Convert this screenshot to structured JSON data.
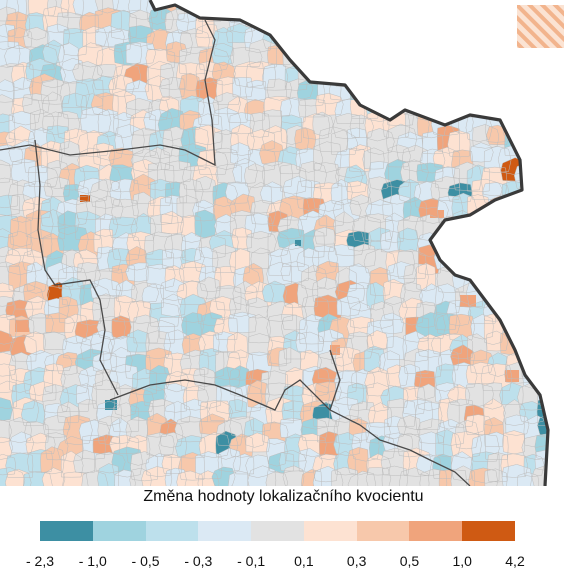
{
  "legend": {
    "title": "Změna hodnoty lokalizačního kvocientu",
    "bins": [
      {
        "color": "#3d8fa3"
      },
      {
        "color": "#9fd3df"
      },
      {
        "color": "#bde0ec"
      },
      {
        "color": "#dbe9f4"
      },
      {
        "color": "#e2e2e2"
      },
      {
        "color": "#fde2d2"
      },
      {
        "color": "#f7c8ab"
      },
      {
        "color": "#f0a47c"
      },
      {
        "color": "#cf5a13"
      }
    ],
    "ticks": [
      "- 2,3",
      "- 1,0",
      "- 0,5",
      "- 0,3",
      "- 0,1",
      "0,1",
      "0,3",
      "0,5",
      "1,0",
      "4,2"
    ]
  },
  "map": {
    "no_data_hatch_color": "#f2b48d",
    "border_color": "#3a3a3a",
    "region_line_color": "#4a4a4a",
    "municipality_line_color": "#bdbdbd"
  }
}
